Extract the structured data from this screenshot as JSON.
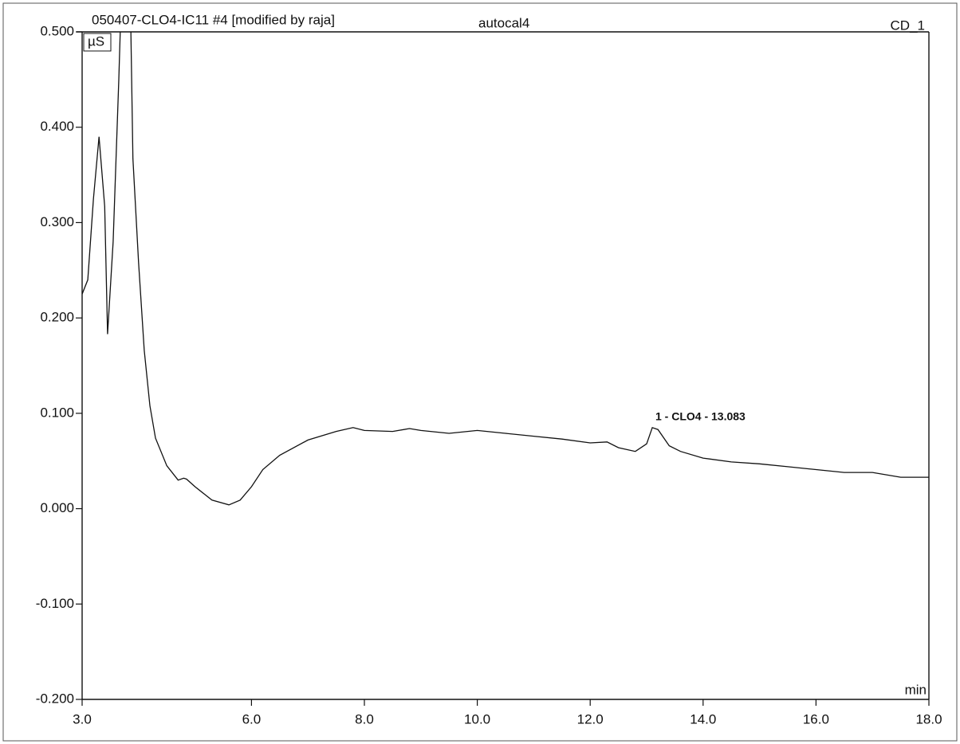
{
  "chart_data": {
    "type": "line",
    "title": "050407-CLO4-IC11 #4 [modified by raja]",
    "subtitle": "autocal4",
    "channel": "CD_1",
    "y_label": "µS",
    "x_label": "min",
    "annotation": "1 - CLO4 - 13.083",
    "color": "#111111",
    "xlim": [
      3.0,
      18.0
    ],
    "ylim": [
      -0.2,
      0.5
    ],
    "xticks": [
      {
        "value": 3,
        "label": "3.0"
      },
      {
        "value": 6,
        "label": "6.0"
      },
      {
        "value": 8,
        "label": "8.0"
      },
      {
        "value": 10,
        "label": "10.0"
      },
      {
        "value": 12,
        "label": "12.0"
      },
      {
        "value": 14,
        "label": "14.0"
      },
      {
        "value": 16,
        "label": "16.0"
      },
      {
        "value": 18,
        "label": "18.0"
      }
    ],
    "yticks": [
      {
        "value": -0.2,
        "label": "-0.200"
      },
      {
        "value": -0.1,
        "label": "-0.100"
      },
      {
        "value": 0,
        "label": "0.000"
      },
      {
        "value": 0.1,
        "label": "0.100"
      },
      {
        "value": 0.2,
        "label": "0.200"
      },
      {
        "value": 0.3,
        "label": "0.300"
      },
      {
        "value": 0.4,
        "label": "0.400"
      },
      {
        "value": 0.5,
        "label": "0.500"
      }
    ],
    "x": [
      3.0,
      3.1,
      3.2,
      3.3,
      3.4,
      3.45,
      3.55,
      3.65,
      3.7,
      3.8,
      3.85,
      3.9,
      4.0,
      4.1,
      4.2,
      4.3,
      4.5,
      4.7,
      4.8,
      4.85,
      5.0,
      5.3,
      5.6,
      5.8,
      6.0,
      6.2,
      6.5,
      7.0,
      7.5,
      7.8,
      8.0,
      8.5,
      8.8,
      9.0,
      9.5,
      10.0,
      10.5,
      11.0,
      11.5,
      12.0,
      12.3,
      12.5,
      12.8,
      13.0,
      13.1,
      13.2,
      13.4,
      13.6,
      14.0,
      14.5,
      15.0,
      15.5,
      16.0,
      16.5,
      17.0,
      17.5,
      18.0
    ],
    "values": [
      0.225,
      0.24,
      0.325,
      0.39,
      0.317,
      0.183,
      0.28,
      0.45,
      0.55,
      0.6,
      0.55,
      0.367,
      0.258,
      0.166,
      0.108,
      0.074,
      0.045,
      0.03,
      0.032,
      0.031,
      0.023,
      0.009,
      0.004,
      0.009,
      0.023,
      0.041,
      0.056,
      0.072,
      0.081,
      0.085,
      0.082,
      0.081,
      0.084,
      0.082,
      0.079,
      0.082,
      0.079,
      0.076,
      0.073,
      0.069,
      0.07,
      0.064,
      0.06,
      0.068,
      0.085,
      0.083,
      0.066,
      0.06,
      0.053,
      0.049,
      0.047,
      0.044,
      0.041,
      0.038,
      0.038,
      0.033,
      0.033
    ]
  }
}
